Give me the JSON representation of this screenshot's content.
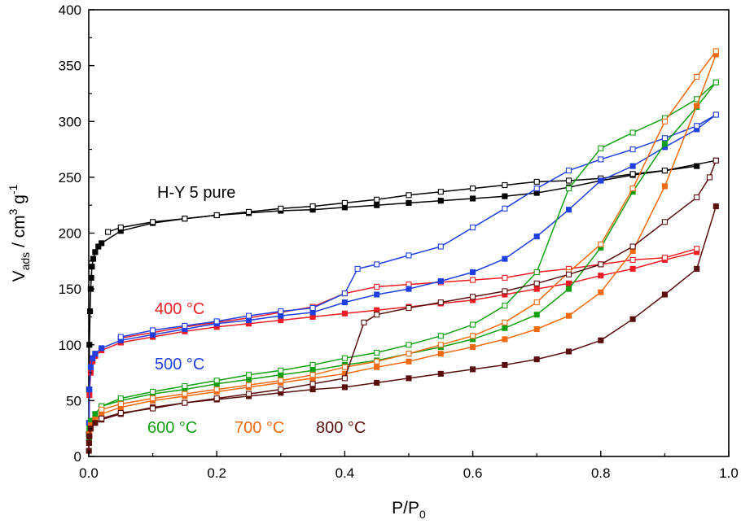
{
  "chart_data": {
    "type": "line",
    "xlabel": {
      "main": "P/P",
      "sub": "0"
    },
    "ylabel": {
      "v": "V",
      "vsub": "ads",
      "sep": " / cm",
      "sup3": "3",
      "g": " g",
      "supneg": "-1"
    },
    "xlim": [
      0,
      1.0
    ],
    "ylim": [
      0,
      400
    ],
    "x_ticks": [
      "0.0",
      "0.2",
      "0.4",
      "0.6",
      "0.8",
      "1.0"
    ],
    "y_ticks": [
      "0",
      "50",
      "100",
      "150",
      "200",
      "250",
      "300",
      "350",
      "400"
    ],
    "grid": false,
    "legend": "none",
    "annotations": [
      {
        "text": "H-Y 5 pure",
        "series": "H-Y 5 pure",
        "color": "#000000"
      },
      {
        "text": "400 °C",
        "series": "400 °C",
        "color": "#ee1c25"
      },
      {
        "text": "500 °C",
        "series": "500 °C",
        "color": "#1f3fe0"
      },
      {
        "text": "600 °C",
        "series": "600 °C",
        "color": "#12a012"
      },
      {
        "text": "700 °C",
        "series": "700 °C",
        "color": "#f26a10"
      },
      {
        "text": "800 °C",
        "series": "800 °C",
        "color": "#5a0f0f"
      }
    ],
    "series": [
      {
        "name": "H-Y 5 pure",
        "color": "#000000",
        "adsorption": [
          [
            0.0002,
            20
          ],
          [
            0.0005,
            60
          ],
          [
            0.001,
            100
          ],
          [
            0.002,
            130
          ],
          [
            0.003,
            150
          ],
          [
            0.004,
            160
          ],
          [
            0.005,
            170
          ],
          [
            0.007,
            177
          ],
          [
            0.01,
            183
          ],
          [
            0.015,
            188
          ],
          [
            0.02,
            191
          ],
          [
            0.05,
            202
          ],
          [
            0.1,
            209
          ],
          [
            0.15,
            213
          ],
          [
            0.2,
            216
          ],
          [
            0.25,
            218
          ],
          [
            0.3,
            220
          ],
          [
            0.35,
            221
          ],
          [
            0.4,
            223
          ],
          [
            0.45,
            225
          ],
          [
            0.5,
            227
          ],
          [
            0.55,
            229
          ],
          [
            0.6,
            231
          ],
          [
            0.65,
            233
          ],
          [
            0.7,
            236
          ],
          [
            0.75,
            241
          ],
          [
            0.8,
            247
          ],
          [
            0.85,
            252
          ],
          [
            0.9,
            256
          ],
          [
            0.95,
            260
          ]
        ],
        "desorption": [
          [
            0.98,
            265
          ],
          [
            0.9,
            256
          ],
          [
            0.85,
            253
          ],
          [
            0.8,
            249
          ],
          [
            0.75,
            247
          ],
          [
            0.7,
            246
          ],
          [
            0.65,
            243
          ],
          [
            0.6,
            240
          ],
          [
            0.55,
            237
          ],
          [
            0.5,
            234
          ],
          [
            0.45,
            230
          ],
          [
            0.4,
            227
          ],
          [
            0.35,
            224
          ],
          [
            0.3,
            222
          ],
          [
            0.25,
            219
          ],
          [
            0.2,
            216
          ],
          [
            0.15,
            213
          ],
          [
            0.1,
            210
          ],
          [
            0.05,
            205
          ],
          [
            0.03,
            201
          ]
        ]
      },
      {
        "name": "400 °C",
        "color": "#ee1c25",
        "adsorption": [
          [
            0.0005,
            30
          ],
          [
            0.001,
            55
          ],
          [
            0.003,
            75
          ],
          [
            0.006,
            85
          ],
          [
            0.01,
            90
          ],
          [
            0.02,
            95
          ],
          [
            0.05,
            102
          ],
          [
            0.1,
            107
          ],
          [
            0.15,
            112
          ],
          [
            0.2,
            116
          ],
          [
            0.25,
            119
          ],
          [
            0.3,
            122
          ],
          [
            0.35,
            125
          ],
          [
            0.4,
            128
          ],
          [
            0.45,
            131
          ],
          [
            0.5,
            134
          ],
          [
            0.55,
            137
          ],
          [
            0.6,
            140
          ],
          [
            0.65,
            145
          ],
          [
            0.7,
            150
          ],
          [
            0.75,
            155
          ],
          [
            0.8,
            162
          ],
          [
            0.85,
            168
          ],
          [
            0.9,
            176
          ],
          [
            0.95,
            183
          ]
        ],
        "desorption": [
          [
            0.95,
            186
          ],
          [
            0.9,
            178
          ],
          [
            0.85,
            176
          ],
          [
            0.8,
            172
          ],
          [
            0.75,
            168
          ],
          [
            0.7,
            165
          ],
          [
            0.65,
            160
          ],
          [
            0.6,
            158
          ],
          [
            0.55,
            156
          ],
          [
            0.5,
            154
          ],
          [
            0.45,
            152
          ],
          [
            0.4,
            146
          ],
          [
            0.35,
            134
          ],
          [
            0.3,
            129
          ],
          [
            0.25,
            124
          ],
          [
            0.2,
            120
          ],
          [
            0.15,
            116
          ],
          [
            0.1,
            111
          ],
          [
            0.05,
            106
          ]
        ]
      },
      {
        "name": "500 °C",
        "color": "#1f3fe0",
        "adsorption": [
          [
            0.0005,
            30
          ],
          [
            0.001,
            60
          ],
          [
            0.003,
            80
          ],
          [
            0.006,
            88
          ],
          [
            0.01,
            92
          ],
          [
            0.02,
            97
          ],
          [
            0.05,
            104
          ],
          [
            0.1,
            109
          ],
          [
            0.15,
            114
          ],
          [
            0.2,
            119
          ],
          [
            0.25,
            122
          ],
          [
            0.3,
            126
          ],
          [
            0.35,
            129
          ],
          [
            0.4,
            138
          ],
          [
            0.45,
            145
          ],
          [
            0.5,
            150
          ],
          [
            0.55,
            157
          ],
          [
            0.6,
            165
          ],
          [
            0.65,
            177
          ],
          [
            0.7,
            197
          ],
          [
            0.75,
            221
          ],
          [
            0.8,
            247
          ],
          [
            0.85,
            260
          ],
          [
            0.9,
            277
          ],
          [
            0.95,
            293
          ],
          [
            0.98,
            306
          ]
        ],
        "desorption": [
          [
            0.98,
            306
          ],
          [
            0.95,
            296
          ],
          [
            0.9,
            285
          ],
          [
            0.85,
            275
          ],
          [
            0.8,
            266
          ],
          [
            0.75,
            256
          ],
          [
            0.7,
            240
          ],
          [
            0.65,
            222
          ],
          [
            0.6,
            205
          ],
          [
            0.55,
            188
          ],
          [
            0.5,
            180
          ],
          [
            0.45,
            172
          ],
          [
            0.42,
            168
          ],
          [
            0.4,
            146
          ],
          [
            0.35,
            133
          ],
          [
            0.3,
            130
          ],
          [
            0.25,
            126
          ],
          [
            0.2,
            121
          ],
          [
            0.15,
            117
          ],
          [
            0.1,
            113
          ],
          [
            0.05,
            107
          ]
        ]
      },
      {
        "name": "600 °C",
        "color": "#12a012",
        "adsorption": [
          [
            0.0005,
            15
          ],
          [
            0.001,
            25
          ],
          [
            0.003,
            32
          ],
          [
            0.01,
            38
          ],
          [
            0.02,
            45
          ],
          [
            0.05,
            50
          ],
          [
            0.1,
            56
          ],
          [
            0.15,
            60
          ],
          [
            0.2,
            65
          ],
          [
            0.25,
            69
          ],
          [
            0.3,
            73
          ],
          [
            0.35,
            77
          ],
          [
            0.4,
            82
          ],
          [
            0.45,
            86
          ],
          [
            0.5,
            92
          ],
          [
            0.55,
            98
          ],
          [
            0.6,
            105
          ],
          [
            0.65,
            115
          ],
          [
            0.7,
            127
          ],
          [
            0.75,
            150
          ],
          [
            0.8,
            187
          ],
          [
            0.85,
            237
          ],
          [
            0.9,
            280
          ],
          [
            0.95,
            313
          ],
          [
            0.98,
            335
          ]
        ],
        "desorption": [
          [
            0.98,
            335
          ],
          [
            0.95,
            320
          ],
          [
            0.9,
            303
          ],
          [
            0.85,
            290
          ],
          [
            0.8,
            276
          ],
          [
            0.75,
            240
          ],
          [
            0.7,
            165
          ],
          [
            0.65,
            135
          ],
          [
            0.6,
            118
          ],
          [
            0.55,
            108
          ],
          [
            0.5,
            100
          ],
          [
            0.45,
            93
          ],
          [
            0.4,
            88
          ],
          [
            0.35,
            82
          ],
          [
            0.3,
            77
          ],
          [
            0.25,
            73
          ],
          [
            0.2,
            68
          ],
          [
            0.15,
            63
          ],
          [
            0.1,
            58
          ],
          [
            0.05,
            52
          ],
          [
            0.02,
            45
          ]
        ]
      },
      {
        "name": "700 °C",
        "color": "#f26a10",
        "adsorption": [
          [
            0.0005,
            12
          ],
          [
            0.001,
            20
          ],
          [
            0.003,
            28
          ],
          [
            0.01,
            33
          ],
          [
            0.02,
            38
          ],
          [
            0.05,
            44
          ],
          [
            0.1,
            50
          ],
          [
            0.15,
            54
          ],
          [
            0.2,
            58
          ],
          [
            0.25,
            62
          ],
          [
            0.3,
            66
          ],
          [
            0.35,
            70
          ],
          [
            0.4,
            74
          ],
          [
            0.45,
            80
          ],
          [
            0.5,
            85
          ],
          [
            0.55,
            92
          ],
          [
            0.6,
            98
          ],
          [
            0.65,
            105
          ],
          [
            0.7,
            114
          ],
          [
            0.75,
            126
          ],
          [
            0.8,
            147
          ],
          [
            0.85,
            184
          ],
          [
            0.9,
            242
          ],
          [
            0.95,
            314
          ],
          [
            0.98,
            360
          ]
        ],
        "desorption": [
          [
            0.98,
            363
          ],
          [
            0.95,
            340
          ],
          [
            0.9,
            300
          ],
          [
            0.85,
            240
          ],
          [
            0.8,
            190
          ],
          [
            0.75,
            165
          ],
          [
            0.7,
            138
          ],
          [
            0.65,
            120
          ],
          [
            0.6,
            108
          ],
          [
            0.55,
            100
          ],
          [
            0.5,
            92
          ],
          [
            0.45,
            85
          ],
          [
            0.4,
            80
          ],
          [
            0.35,
            73
          ],
          [
            0.3,
            68
          ],
          [
            0.25,
            64
          ],
          [
            0.2,
            60
          ],
          [
            0.15,
            56
          ],
          [
            0.1,
            52
          ],
          [
            0.05,
            47
          ],
          [
            0.02,
            42
          ]
        ]
      },
      {
        "name": "800 °C",
        "color": "#5a0f0f",
        "adsorption": [
          [
            0.0003,
            5
          ],
          [
            0.0005,
            12
          ],
          [
            0.001,
            18
          ],
          [
            0.003,
            25
          ],
          [
            0.01,
            30
          ],
          [
            0.02,
            33
          ],
          [
            0.05,
            38
          ],
          [
            0.1,
            44
          ],
          [
            0.15,
            48
          ],
          [
            0.2,
            51
          ],
          [
            0.25,
            54
          ],
          [
            0.3,
            57
          ],
          [
            0.35,
            60
          ],
          [
            0.4,
            62
          ],
          [
            0.45,
            66
          ],
          [
            0.5,
            70
          ],
          [
            0.55,
            74
          ],
          [
            0.6,
            78
          ],
          [
            0.65,
            82
          ],
          [
            0.7,
            87
          ],
          [
            0.75,
            94
          ],
          [
            0.8,
            104
          ],
          [
            0.85,
            123
          ],
          [
            0.9,
            145
          ],
          [
            0.95,
            168
          ],
          [
            0.98,
            224
          ]
        ],
        "desorption": [
          [
            0.98,
            265
          ],
          [
            0.97,
            250
          ],
          [
            0.95,
            232
          ],
          [
            0.9,
            210
          ],
          [
            0.85,
            188
          ],
          [
            0.8,
            172
          ],
          [
            0.75,
            163
          ],
          [
            0.7,
            155
          ],
          [
            0.65,
            148
          ],
          [
            0.6,
            143
          ],
          [
            0.55,
            138
          ],
          [
            0.5,
            133
          ],
          [
            0.45,
            127
          ],
          [
            0.43,
            120
          ],
          [
            0.4,
            70
          ],
          [
            0.35,
            65
          ],
          [
            0.3,
            60
          ],
          [
            0.25,
            56
          ],
          [
            0.2,
            52
          ],
          [
            0.15,
            48
          ],
          [
            0.1,
            43
          ],
          [
            0.05,
            39
          ],
          [
            0.02,
            34
          ]
        ]
      }
    ]
  }
}
